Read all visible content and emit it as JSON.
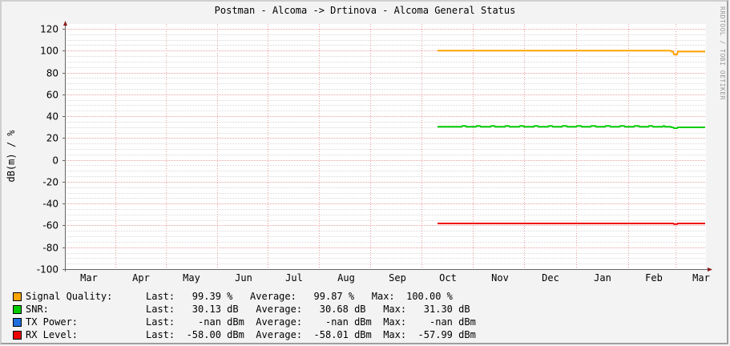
{
  "header": {
    "title": "Postman - Alcoma -> Drtinova - Alcoma General Status",
    "watermark": "RRDTOOL / TOBI OETIKER"
  },
  "axis": {
    "ylabel": "dB(m) / %",
    "yticks": [
      "120",
      "100",
      "80",
      "60",
      "40",
      "20",
      "0",
      "-20",
      "-40",
      "-60",
      "-80",
      "-100"
    ],
    "xticks": [
      "Mar",
      "Apr",
      "May",
      "Jun",
      "Jul",
      "Aug",
      "Sep",
      "Oct",
      "Nov",
      "Dec",
      "Jan",
      "Feb",
      "Mar"
    ]
  },
  "colors": {
    "signal_quality": "#FFA500",
    "snr": "#00CC00",
    "tx_power": "#1E6FDD",
    "rx_level": "#EE0000",
    "grid_major": "#E8A0A0",
    "grid_minor": "#D8D8D8",
    "axis": "#666666",
    "arrow": "#8B1A1A"
  },
  "legend": [
    {
      "name": "Signal Quality:",
      "color": "#FFA500",
      "last_label": "Last:",
      "last": "  99.39 % ",
      "avg_label": "Average:",
      "avg": "  99.87 % ",
      "max_label": "Max:",
      "max": " 100.00 % "
    },
    {
      "name": "SNR:",
      "color": "#00CC00",
      "last_label": "Last:",
      "last": "  30.13 dB ",
      "avg_label": "Average:",
      "avg": "  30.68 dB ",
      "max_label": "Max:",
      "max": "  31.30 dB"
    },
    {
      "name": "TX Power:",
      "color": "#1E6FDD",
      "last_label": "Last:",
      "last": "   -nan dBm",
      "avg_label": "Average:",
      "avg": "   -nan dBm",
      "max_label": "Max:",
      "max": "   -nan dBm"
    },
    {
      "name": "RX Level:",
      "color": "#EE0000",
      "last_label": "Last:",
      "last": " -58.00 dBm",
      "avg_label": "Average:",
      "avg": " -58.01 dBm",
      "max_label": "Max:",
      "max": " -57.99 dBm"
    }
  ],
  "chart_data": {
    "type": "line",
    "title": "Postman - Alcoma -> Drtinova - Alcoma General Status",
    "xlabel": "",
    "ylabel": "dB(m) / %",
    "ylim": [
      -100,
      120
    ],
    "grid": true,
    "legend_position": "bottom",
    "x": [
      "Mar",
      "Apr",
      "May",
      "Jun",
      "Jul",
      "Aug",
      "Sep",
      "Oct",
      "Nov",
      "Dec",
      "Jan",
      "Feb",
      "Mar"
    ],
    "series": [
      {
        "name": "Signal Quality",
        "unit": "%",
        "color": "#FFA500",
        "start": "late Sep",
        "values_approx": [
          100,
          100,
          100,
          100,
          100,
          100,
          96,
          99.5,
          99.4
        ],
        "last": 99.39,
        "average": 99.87,
        "max": 100.0
      },
      {
        "name": "SNR",
        "unit": "dB",
        "color": "#00CC00",
        "start": "late Sep",
        "values_approx": [
          30.5,
          31,
          30.8,
          31,
          30.8,
          30.5,
          29.5,
          30.2,
          30.13
        ],
        "last": 30.13,
        "average": 30.68,
        "max": 31.3
      },
      {
        "name": "TX Power",
        "unit": "dBm",
        "color": "#1E6FDD",
        "values_approx": [],
        "last": "-nan",
        "average": "-nan",
        "max": "-nan"
      },
      {
        "name": "RX Level",
        "unit": "dBm",
        "color": "#EE0000",
        "start": "late Sep",
        "values_approx": [
          -58,
          -58,
          -58,
          -58,
          -58,
          -58,
          -58.5,
          -58,
          -58
        ],
        "last": -58.0,
        "average": -58.01,
        "max": -57.99
      }
    ]
  }
}
